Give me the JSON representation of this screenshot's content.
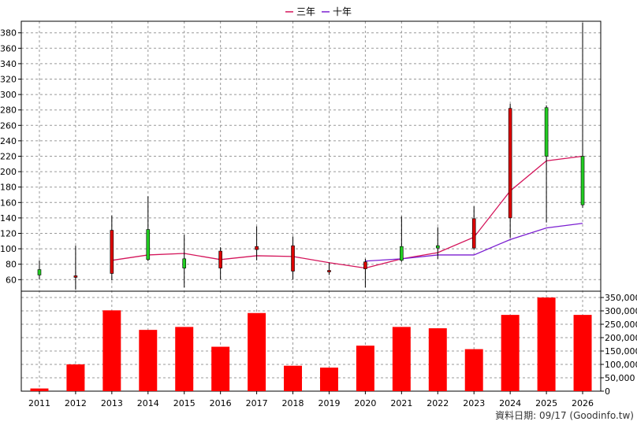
{
  "chart_data": {
    "type": "candlestick+bar",
    "legend": [
      {
        "name": "三年",
        "color": "#d4145a"
      },
      {
        "name": "十年",
        "color": "#7b1fd1"
      }
    ],
    "legend_position": "top-center",
    "grid": true,
    "categories": [
      "2011",
      "2012",
      "2013",
      "2014",
      "2015",
      "2016",
      "2017",
      "2018",
      "2019",
      "2020",
      "2021",
      "2022",
      "2023",
      "2024",
      "2025",
      "2026"
    ],
    "price_axis": {
      "min": 45,
      "max": 395,
      "ticks": [
        60,
        80,
        100,
        120,
        140,
        160,
        180,
        200,
        220,
        240,
        260,
        280,
        300,
        320,
        340,
        360,
        380
      ]
    },
    "volume_axis": {
      "min": 0,
      "max": 350000,
      "ticks": [
        0,
        50000,
        100000,
        150000,
        200000,
        250000,
        300000,
        350000
      ],
      "tick_labels": [
        "0",
        "50,000",
        "100,000",
        "150,000",
        "200,000",
        "250,000",
        "300,000",
        "350,000"
      ]
    },
    "candles": [
      {
        "year": "2011",
        "open": 66,
        "close": 73,
        "high": 85,
        "low": 60
      },
      {
        "year": "2012",
        "open": 65,
        "close": 63,
        "high": 104,
        "low": 47
      },
      {
        "year": "2013",
        "open": 124,
        "close": 68,
        "high": 143,
        "low": 59
      },
      {
        "year": "2014",
        "open": 86,
        "close": 125,
        "high": 168,
        "low": 84
      },
      {
        "year": "2015",
        "open": 75,
        "close": 87,
        "high": 118,
        "low": 50
      },
      {
        "year": "2016",
        "open": 97,
        "close": 75,
        "high": 102,
        "low": 60
      },
      {
        "year": "2017",
        "open": 103,
        "close": 99,
        "high": 129,
        "low": 85
      },
      {
        "year": "2018",
        "open": 104,
        "close": 71,
        "high": 116,
        "low": 60
      },
      {
        "year": "2019",
        "open": 72,
        "close": 70,
        "high": 82,
        "low": 66
      },
      {
        "year": "2020",
        "open": 83,
        "close": 74,
        "high": 87,
        "low": 50
      },
      {
        "year": "2021",
        "open": 85,
        "close": 103,
        "high": 142,
        "low": 83
      },
      {
        "year": "2022",
        "open": 101,
        "close": 104,
        "high": 128,
        "low": 87
      },
      {
        "year": "2023",
        "open": 139,
        "close": 101,
        "high": 155,
        "low": 99
      },
      {
        "year": "2024",
        "open": 282,
        "close": 140,
        "high": 288,
        "low": 114
      },
      {
        "year": "2025",
        "open": 220,
        "close": 283,
        "high": 286,
        "low": 134
      },
      {
        "year": "2026",
        "open": 157,
        "close": 220,
        "high": 393,
        "low": 153
      }
    ],
    "ma_series": [
      {
        "name": "三年",
        "x": [
          "2013",
          "2014",
          "2015",
          "2016",
          "2017",
          "2018",
          "2019",
          "2020",
          "2021",
          "2022",
          "2023",
          "2024",
          "2025",
          "2026"
        ],
        "values": [
          85,
          92,
          94,
          86,
          91,
          90,
          82,
          75,
          87,
          95,
          115,
          175,
          214,
          220
        ]
      },
      {
        "name": "十年",
        "x": [
          "2020",
          "2021",
          "2022",
          "2023",
          "2024",
          "2025",
          "2026"
        ],
        "values": [
          84,
          87,
          92,
          92,
          112,
          127,
          133
        ]
      }
    ],
    "volume": [
      10000,
      100000,
      302000,
      229000,
      240000,
      166000,
      292000,
      95000,
      88000,
      170000,
      240000,
      235000,
      157000,
      285000,
      350000,
      285000
    ]
  },
  "footer": {
    "text": "資料日期: 09/17  (Goodinfo.tw)"
  },
  "colors": {
    "up": "#22cc22",
    "down": "#dd0000",
    "volume": "#ff0000",
    "grid": "#999999"
  }
}
